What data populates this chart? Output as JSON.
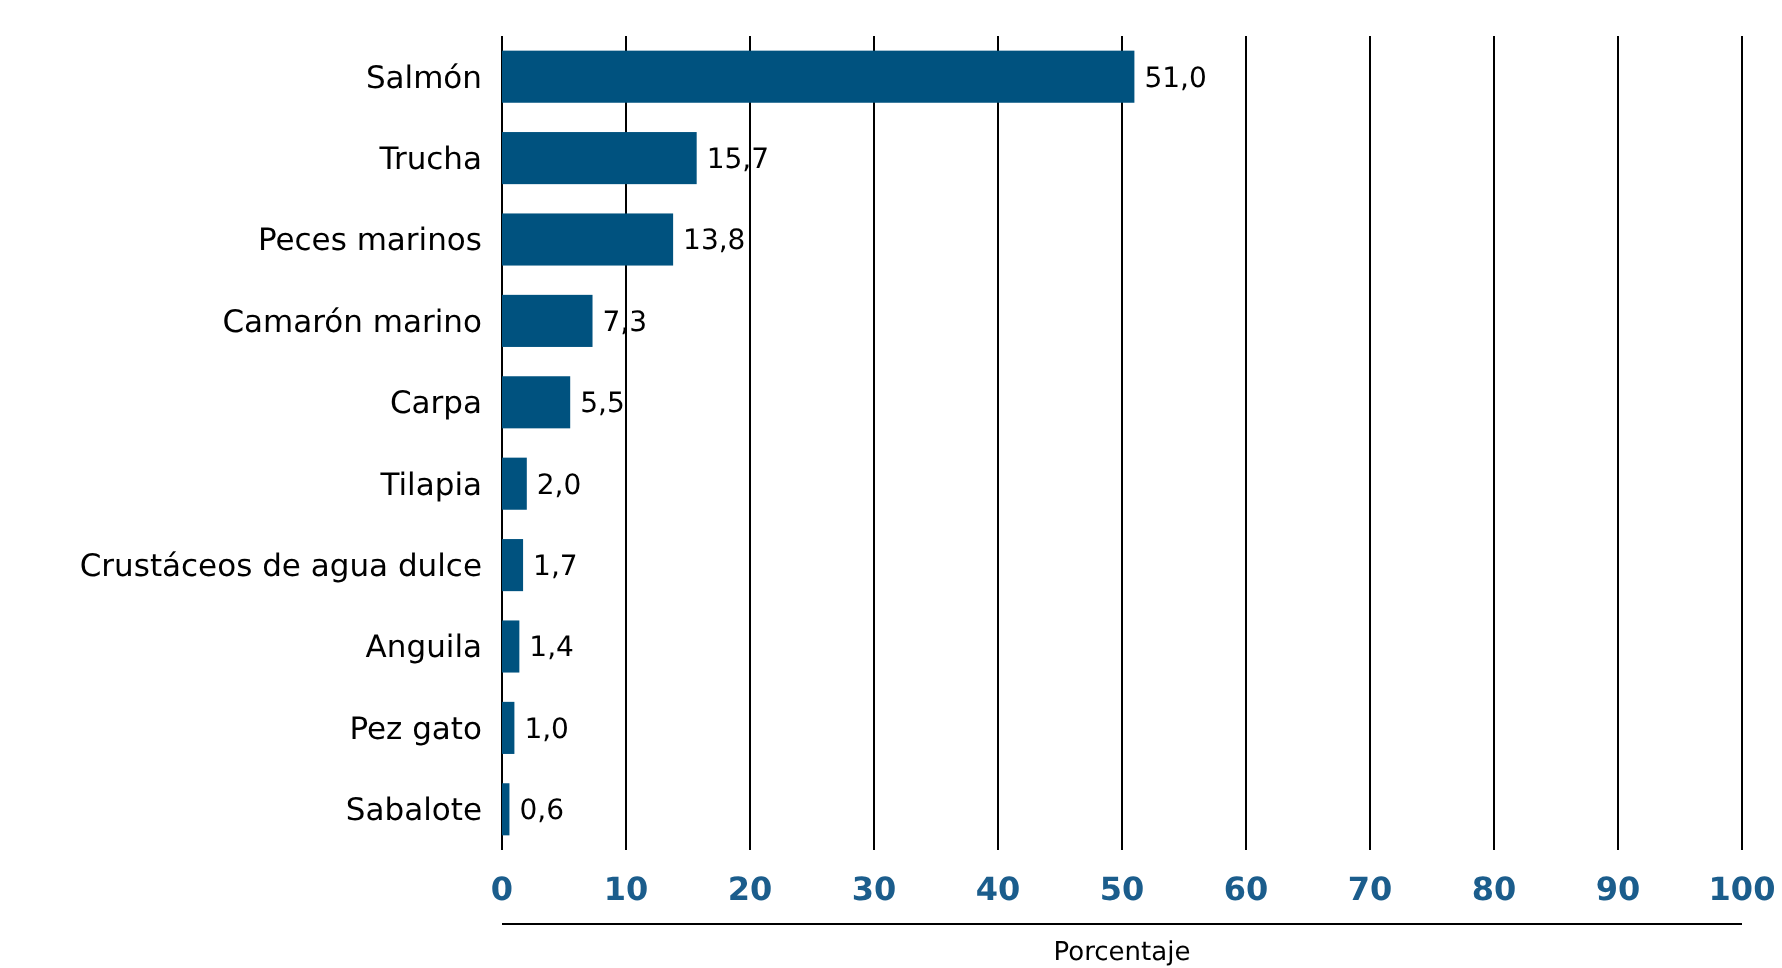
{
  "chart_data": {
    "type": "bar",
    "orientation": "horizontal",
    "xlabel": "Porcentaje",
    "categories": [
      "Salmón",
      "Trucha",
      "Peces marinos",
      "Camarón marino",
      "Carpa",
      "Tilapia",
      "Crustáceos de agua dulce",
      "Anguila",
      "Pez gato",
      "Sabalote"
    ],
    "values": [
      51.0,
      15.7,
      13.8,
      7.3,
      5.5,
      2.0,
      1.7,
      1.4,
      1.0,
      0.6
    ],
    "value_labels": [
      "51,0",
      "15,7",
      "13,8",
      "7,3",
      "5,5",
      "2,0",
      "1,7",
      "1,4",
      "1,0",
      "0,6"
    ],
    "color": "#00527f",
    "xlim": [
      0,
      100
    ],
    "xticks": [
      0,
      10,
      20,
      30,
      40,
      50,
      60,
      70,
      80,
      90,
      100
    ],
    "grid": "x"
  }
}
